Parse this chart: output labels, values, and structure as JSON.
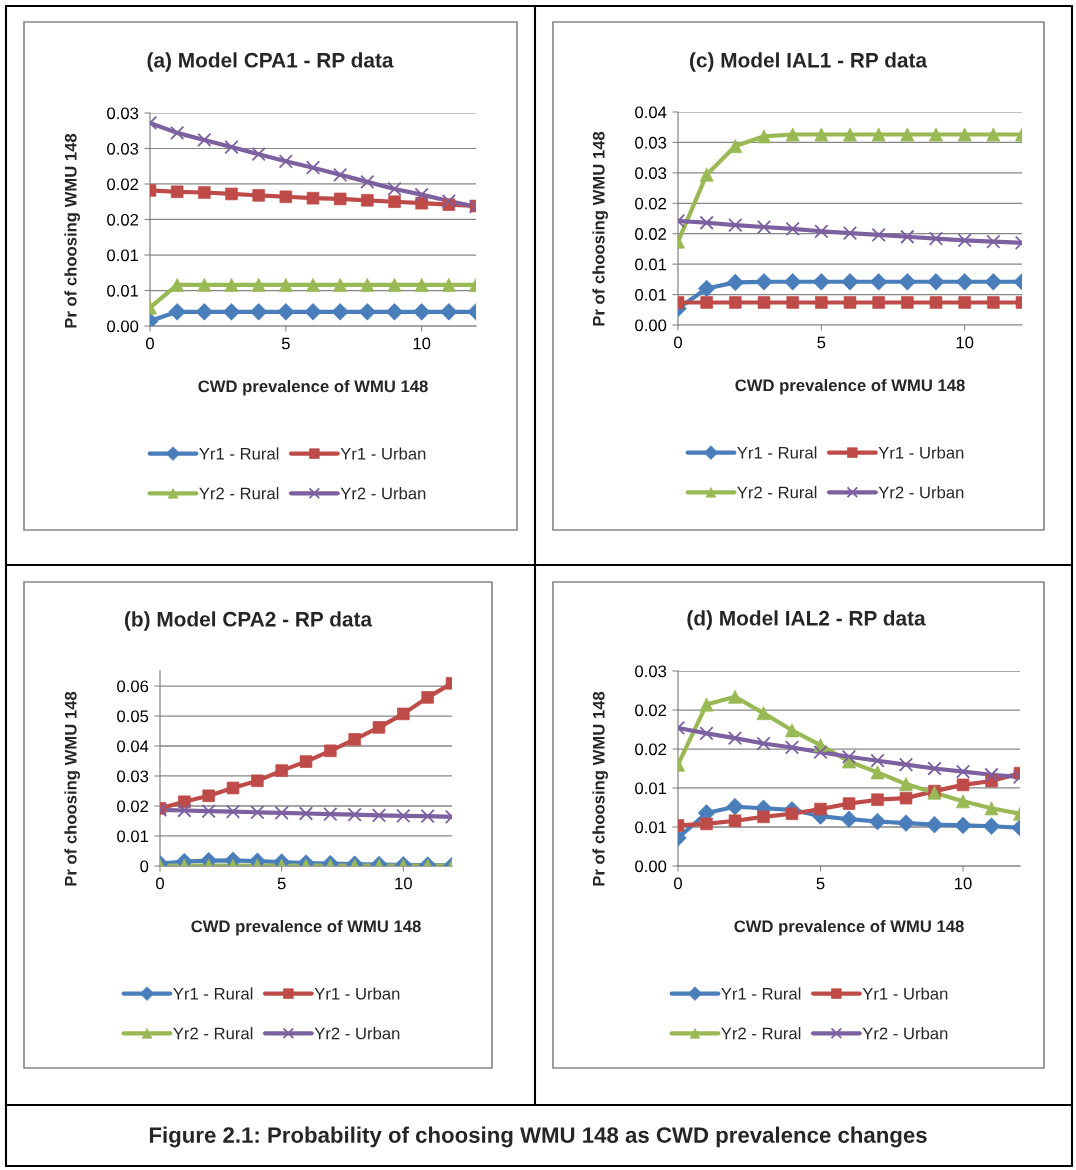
{
  "chart_data": [
    {
      "type": "line",
      "title": "(a) Model CPA1 - RP data",
      "xlabel": "CWD prevalence of WMU 148",
      "ylabel": "Pr of choosing WMU 148",
      "x": [
        0,
        1,
        2,
        3,
        4,
        5,
        6,
        7,
        8,
        9,
        10,
        11,
        12
      ],
      "xlim": [
        0,
        12
      ],
      "xticks": [
        0,
        5,
        10
      ],
      "ylim": [
        0,
        0.03
      ],
      "yticks": [
        {
          "value": 0,
          "label": "0.00"
        },
        {
          "value": 0.005,
          "label": "0.01"
        },
        0.01,
        {
          "value": 0.015,
          "label": "0.02"
        },
        0.02,
        {
          "value": 0.025,
          "label": "0.03"
        },
        0.03
      ],
      "grid": "y",
      "legend": "bottom",
      "line_style": "solid",
      "series": [
        {
          "name": "Yr1 - Rural",
          "color": "#4a7ebb",
          "marker": "diamond",
          "values": [
            0.0007,
            0.002,
            0.002,
            0.002,
            0.002,
            0.002,
            0.002,
            0.002,
            0.002,
            0.002,
            0.002,
            0.002,
            0.002
          ]
        },
        {
          "name": "Yr1 - Urban",
          "color": "#be4b48",
          "marker": "square",
          "values": [
            0.0191,
            0.0189,
            0.0188,
            0.0186,
            0.0184,
            0.0182,
            0.018,
            0.0179,
            0.0177,
            0.0175,
            0.0173,
            0.0171,
            0.0169
          ]
        },
        {
          "name": "Yr2 - Rural",
          "color": "#98b954",
          "marker": "triangle",
          "values": [
            0.0026,
            0.0058,
            0.0058,
            0.0058,
            0.0058,
            0.0058,
            0.0058,
            0.0058,
            0.0058,
            0.0058,
            0.0058,
            0.0058,
            0.0058
          ]
        },
        {
          "name": "Yr2 - Urban",
          "color": "#7d60a0",
          "marker": "cross",
          "values": [
            0.0286,
            0.0272,
            0.0262,
            0.0252,
            0.0242,
            0.0232,
            0.0223,
            0.0213,
            0.0203,
            0.0193,
            0.0185,
            0.0176,
            0.0168
          ]
        }
      ]
    },
    {
      "type": "line",
      "title": "(c) Model IAL1 - RP data",
      "xlabel": "CWD prevalence of WMU 148",
      "ylabel": "Pr of choosing WMU 148",
      "x": [
        0,
        1,
        2,
        3,
        4,
        5,
        6,
        7,
        8,
        9,
        10,
        11,
        12
      ],
      "xlim": [
        0,
        12
      ],
      "xticks": [
        0,
        5,
        10
      ],
      "ylim": [
        0,
        0.035
      ],
      "yticks": [
        {
          "value": 0,
          "label": "0.00"
        },
        {
          "value": 0.005,
          "label": "0.01"
        },
        0.01,
        {
          "value": 0.015,
          "label": "0.02"
        },
        0.02,
        {
          "value": 0.025,
          "label": "0.03"
        },
        0.03,
        {
          "value": 0.035,
          "label": "0.04"
        }
      ],
      "grid": "y",
      "legend": "bottom",
      "line_style": "solid",
      "series": [
        {
          "name": "Yr1 - Rural",
          "color": "#4a7ebb",
          "marker": "diamond",
          "values": [
            0.0027,
            0.006,
            0.007,
            0.0071,
            0.0071,
            0.0071,
            0.0071,
            0.0071,
            0.0071,
            0.0071,
            0.0071,
            0.0071,
            0.0071
          ]
        },
        {
          "name": "Yr1 - Urban",
          "color": "#be4b48",
          "marker": "square",
          "values": [
            0.0037,
            0.0037,
            0.0037,
            0.0037,
            0.0037,
            0.0037,
            0.0037,
            0.0037,
            0.0037,
            0.0037,
            0.0037,
            0.0037,
            0.0037
          ]
        },
        {
          "name": "Yr2 - Rural",
          "color": "#98b954",
          "marker": "triangle",
          "values": [
            0.0137,
            0.0247,
            0.0294,
            0.031,
            0.0313,
            0.0313,
            0.0313,
            0.0313,
            0.0313,
            0.0313,
            0.0313,
            0.0313,
            0.0313
          ]
        },
        {
          "name": "Yr2 - Urban",
          "color": "#7d60a0",
          "marker": "cross",
          "values": [
            0.0171,
            0.0168,
            0.0164,
            0.0161,
            0.0158,
            0.0154,
            0.0151,
            0.0148,
            0.0145,
            0.0142,
            0.0139,
            0.0137,
            0.0135
          ]
        }
      ]
    },
    {
      "type": "line",
      "title": "(b) Model CPA2 - RP data",
      "xlabel": "CWD prevalence of WMU 148",
      "ylabel": "Pr of choosing WMU 148",
      "x": [
        0,
        1,
        2,
        3,
        4,
        5,
        6,
        7,
        8,
        9,
        10,
        11,
        12
      ],
      "xlim": [
        0,
        12
      ],
      "xticks": [
        0,
        5,
        10
      ],
      "ylim": [
        0,
        0.065
      ],
      "yticks": [
        0,
        0.01,
        0.02,
        0.03,
        0.04,
        0.05,
        0.06
      ],
      "grid": "y",
      "legend": "bottom",
      "line_style": "solid",
      "series": [
        {
          "name": "Yr1 - Rural",
          "color": "#4a7ebb",
          "marker": "diamond",
          "values": [
            0.0008,
            0.0015,
            0.0018,
            0.0019,
            0.0016,
            0.0013,
            0.001,
            0.0008,
            0.0006,
            0.0005,
            0.0004,
            0.0003,
            0.0002
          ]
        },
        {
          "name": "Yr1 - Urban",
          "color": "#be4b48",
          "marker": "square",
          "values": [
            0.0192,
            0.0214,
            0.0234,
            0.026,
            0.0284,
            0.0318,
            0.0348,
            0.0384,
            0.0422,
            0.0462,
            0.0507,
            0.0562,
            0.0609
          ]
        },
        {
          "name": "Yr2 - Rural",
          "color": "#98b954",
          "marker": "triangle",
          "values": [
            0.0001,
            0.0001,
            0.0001,
            0.0001,
            0.0001,
            0.0001,
            0.0001,
            0.0001,
            0.0001,
            0.0001,
            0.0001,
            0.0001,
            0.0001
          ]
        },
        {
          "name": "Yr2 - Urban",
          "color": "#7d60a0",
          "marker": "cross",
          "values": [
            0.0187,
            0.0185,
            0.0183,
            0.0181,
            0.0179,
            0.0177,
            0.0175,
            0.0173,
            0.0171,
            0.0169,
            0.0167,
            0.0166,
            0.0164
          ]
        }
      ]
    },
    {
      "type": "line",
      "title": "(d) Model IAL2 - RP data",
      "xlabel": "CWD prevalence of WMU 148",
      "ylabel": "Pr of choosing WMU 148",
      "x": [
        0,
        1,
        2,
        3,
        4,
        5,
        6,
        7,
        8,
        9,
        10,
        11,
        12
      ],
      "xlim": [
        0,
        12
      ],
      "xticks": [
        0,
        5,
        10
      ],
      "ylim": [
        0,
        0.025
      ],
      "yticks": [
        {
          "value": 0,
          "label": "0.00"
        },
        {
          "value": 0.005,
          "label": "0.01"
        },
        0.01,
        {
          "value": 0.015,
          "label": "0.02"
        },
        0.02,
        {
          "value": 0.025,
          "label": "0.03"
        }
      ],
      "grid": "y",
      "legend": "bottom",
      "line_style": "solid",
      "annotations": [
        "Figure 2.1: Probability of choosing WMU 148 as CWD prevalence changes"
      ],
      "series": [
        {
          "name": "Yr1 - Rural",
          "color": "#4a7ebb",
          "marker": "diamond",
          "values": [
            0.0036,
            0.0068,
            0.0076,
            0.0074,
            0.0072,
            0.0064,
            0.006,
            0.0057,
            0.0055,
            0.0053,
            0.0052,
            0.0051,
            0.0049
          ]
        },
        {
          "name": "Yr1 - Urban",
          "color": "#be4b48",
          "marker": "square",
          "values": [
            0.0052,
            0.0054,
            0.0058,
            0.0063,
            0.0067,
            0.0073,
            0.008,
            0.0085,
            0.0087,
            0.0096,
            0.0104,
            0.0109,
            0.0119
          ]
        },
        {
          "name": "Yr2 - Rural",
          "color": "#98b954",
          "marker": "triangle",
          "values": [
            0.013,
            0.0207,
            0.0217,
            0.0196,
            0.0174,
            0.0155,
            0.0134,
            0.012,
            0.0105,
            0.0094,
            0.0083,
            0.0074,
            0.0067
          ]
        },
        {
          "name": "Yr2 - Urban",
          "color": "#7d60a0",
          "marker": "cross",
          "values": [
            0.0177,
            0.017,
            0.0164,
            0.0157,
            0.0152,
            0.0146,
            0.014,
            0.0135,
            0.013,
            0.0125,
            0.0121,
            0.0117,
            0.0114
          ]
        }
      ]
    }
  ]
}
